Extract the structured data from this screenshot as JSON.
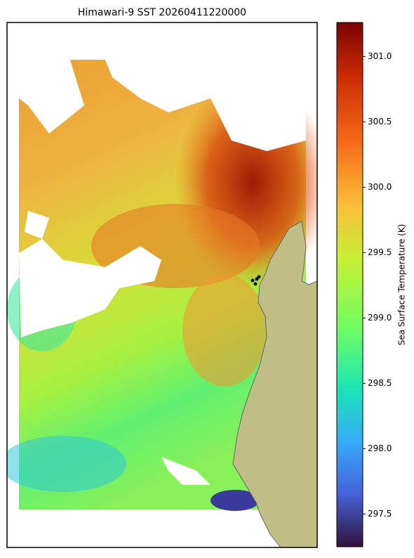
{
  "title": "Himawari-9 SST 20260411220000",
  "colorbar": {
    "label": "Sea Surface Temperature (K)",
    "lim": [
      297.25,
      301.26
    ],
    "ticks": [
      {
        "value": 297.5,
        "label": "297.5"
      },
      {
        "value": 298,
        "label": "298.0"
      },
      {
        "value": 298.5,
        "label": "298.5"
      },
      {
        "value": 299,
        "label": "299.0"
      },
      {
        "value": 299.5,
        "label": "299.5"
      },
      {
        "value": 300,
        "label": "300.0"
      },
      {
        "value": 300.5,
        "label": "300.5"
      },
      {
        "value": 301,
        "label": "301.0"
      }
    ]
  }
}
